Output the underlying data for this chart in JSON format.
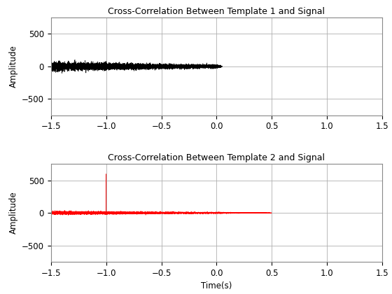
{
  "title1": "Cross-Correlation Between Template 1 and Signal",
  "title2": "Cross-Correlation Between Template 2 and Signal",
  "ylabel": "Amplitude",
  "xlabel": "Time(s)",
  "xlim": [
    -1.5,
    1.5
  ],
  "ylim1": [
    -750,
    750
  ],
  "ylim2": [
    -750,
    750
  ],
  "yticks1": [
    -500,
    0,
    500
  ],
  "yticks2": [
    -500,
    0,
    500
  ],
  "xticks": [
    -1.5,
    -1,
    -0.5,
    0,
    0.5,
    1,
    1.5
  ],
  "color1": "#000000",
  "color2": "#ff0000",
  "background_color": "#ffffff",
  "grid_color": "#b0b0b0",
  "fs": 8000,
  "seed": 42
}
